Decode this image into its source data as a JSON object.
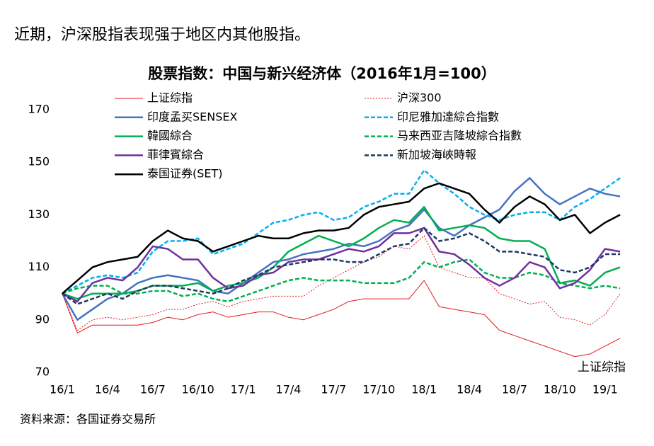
{
  "header": "近期，沪深股指表现强于地区内其他股指。",
  "source": "资料来源：各国证券交易所",
  "chart_data": {
    "type": "line",
    "title": "股票指数：中国与新兴经济体（2016年1月=100）",
    "annotation": "上证综指",
    "categories": [
      "16/1",
      null,
      null,
      "16/4",
      null,
      null,
      "16/7",
      null,
      null,
      "16/10",
      null,
      null,
      "17/1",
      null,
      null,
      "17/4",
      null,
      null,
      "17/7",
      null,
      null,
      "17/10",
      null,
      null,
      "18/1",
      null,
      null,
      "18/4",
      null,
      null,
      "18/7",
      null,
      null,
      "18/10",
      null,
      null,
      "19/1",
      null
    ],
    "ylim": [
      70,
      170
    ],
    "yticks": [
      70,
      90,
      110,
      130,
      150,
      170
    ],
    "grid": false,
    "series": [
      {
        "name": "上证综指",
        "color": "#e31a1c",
        "style": "solid",
        "width": 1,
        "values": [
          100,
          85,
          88,
          88,
          88,
          88,
          89,
          91,
          90,
          92,
          93,
          91,
          92,
          93,
          93,
          91,
          90,
          92,
          94,
          97,
          98,
          98,
          98,
          98,
          105,
          95,
          94,
          93,
          92,
          86,
          84,
          82,
          80,
          78,
          76,
          77,
          80,
          83
        ]
      },
      {
        "name": "沪深300",
        "color": "#e31a1c",
        "style": "dotted",
        "width": 1,
        "values": [
          100,
          86,
          90,
          91,
          90,
          91,
          92,
          94,
          94,
          96,
          97,
          95,
          97,
          98,
          99,
          99,
          99,
          103,
          106,
          109,
          112,
          114,
          118,
          117,
          122,
          110,
          108,
          106,
          106,
          100,
          98,
          96,
          97,
          91,
          90,
          88,
          92,
          100
        ]
      },
      {
        "name": "印度孟买SENSEX",
        "color": "#4472c4",
        "style": "solid",
        "width": 2.5,
        "values": [
          100,
          90,
          94,
          98,
          100,
          104,
          106,
          107,
          106,
          105,
          101,
          100,
          104,
          108,
          112,
          113,
          115,
          116,
          117,
          119,
          118,
          120,
          124,
          126,
          132,
          125,
          122,
          126,
          129,
          132,
          139,
          144,
          138,
          134,
          137,
          140,
          138,
          137
        ]
      },
      {
        "name": "印尼雅加達綜合指數",
        "color": "#00b0f0",
        "style": "dashed",
        "width": 2.5,
        "values": [
          100,
          103,
          106,
          107,
          106,
          108,
          116,
          120,
          120,
          121,
          115,
          117,
          119,
          123,
          127,
          128,
          130,
          131,
          128,
          129,
          133,
          135,
          138,
          138,
          147,
          142,
          138,
          133,
          130,
          128,
          130,
          131,
          131,
          128,
          133,
          136,
          140,
          144
        ]
      },
      {
        "name": "韓國綜合",
        "color": "#00b050",
        "style": "solid",
        "width": 2.5,
        "values": [
          100,
          98,
          100,
          100,
          100,
          101,
          103,
          103,
          103,
          104,
          101,
          103,
          104,
          106,
          110,
          116,
          119,
          122,
          120,
          118,
          121,
          125,
          128,
          127,
          133,
          124,
          125,
          126,
          125,
          121,
          120,
          120,
          117,
          104,
          105,
          103,
          108,
          110
        ]
      },
      {
        "name": "马来西亚吉隆坡綜合指數",
        "color": "#00b050",
        "style": "dashed",
        "width": 2.5,
        "values": [
          100,
          102,
          103,
          103,
          100,
          100,
          101,
          101,
          99,
          100,
          98,
          97,
          99,
          101,
          103,
          105,
          106,
          105,
          105,
          105,
          104,
          104,
          104,
          106,
          112,
          110,
          112,
          113,
          108,
          106,
          106,
          108,
          107,
          104,
          103,
          102,
          103,
          102
        ]
      },
      {
        "name": "菲律賓綜合",
        "color": "#7030a0",
        "style": "solid",
        "width": 2.5,
        "values": [
          100,
          97,
          104,
          106,
          105,
          110,
          118,
          117,
          113,
          113,
          106,
          102,
          103,
          107,
          108,
          112,
          113,
          113,
          115,
          117,
          116,
          118,
          123,
          123,
          125,
          116,
          115,
          111,
          106,
          103,
          106,
          112,
          110,
          102,
          104,
          109,
          117,
          116
        ]
      },
      {
        "name": "新加坡海峽時報",
        "color": "#1f3864",
        "style": "dashed",
        "width": 2.5,
        "values": [
          100,
          96,
          98,
          100,
          98,
          101,
          103,
          103,
          102,
          101,
          100,
          102,
          105,
          107,
          110,
          111,
          112,
          113,
          113,
          112,
          112,
          115,
          118,
          119,
          125,
          120,
          121,
          123,
          120,
          116,
          116,
          115,
          114,
          109,
          108,
          110,
          115,
          115
        ]
      },
      {
        "name": "泰国证券(SET)",
        "color": "#000000",
        "style": "solid",
        "width": 2.5,
        "values": [
          100,
          105,
          110,
          112,
          113,
          114,
          120,
          124,
          121,
          120,
          116,
          118,
          120,
          122,
          121,
          121,
          123,
          124,
          124,
          125,
          130,
          133,
          134,
          135,
          140,
          142,
          140,
          138,
          132,
          127,
          133,
          137,
          134,
          128,
          130,
          123,
          127,
          130
        ]
      }
    ]
  }
}
